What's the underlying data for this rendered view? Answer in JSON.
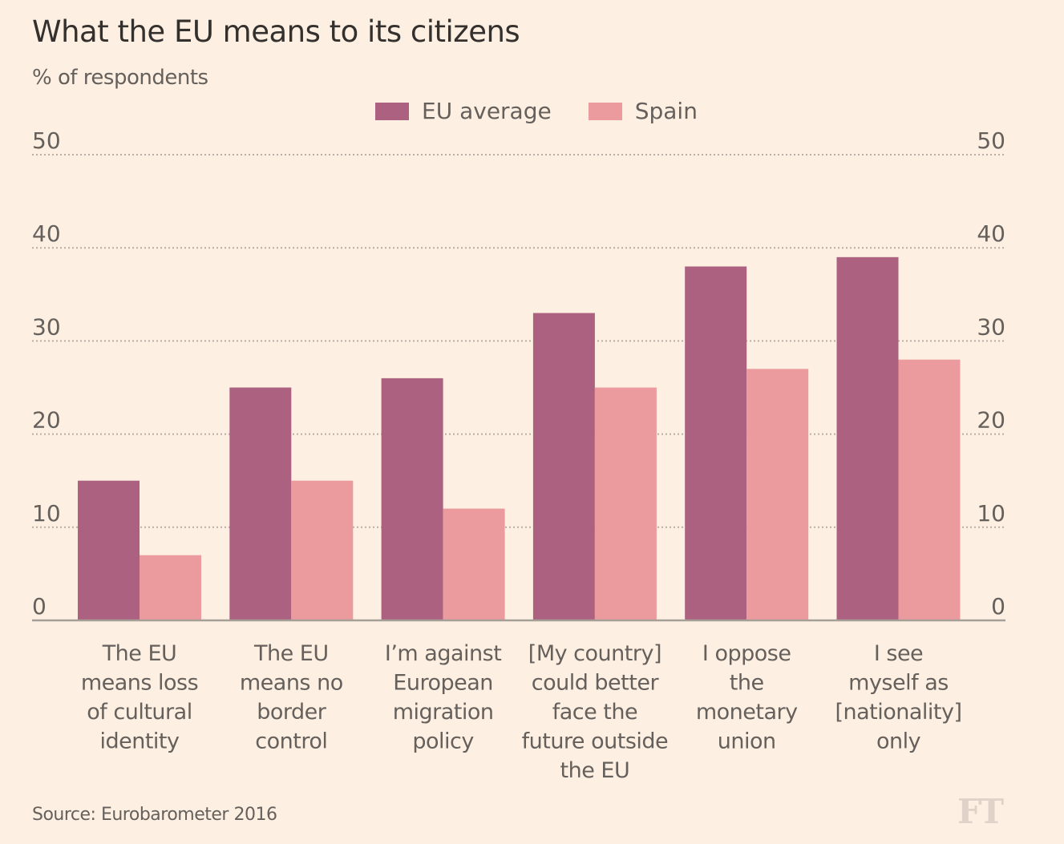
{
  "chart_data": {
    "type": "bar",
    "title": "What the EU means to its citizens",
    "subtitle": "% of respondents",
    "xlabel": "",
    "ylabel": "% of respondents",
    "ylim": [
      0,
      50
    ],
    "yticks": [
      0,
      10,
      20,
      30,
      40,
      50
    ],
    "ytick_labels": [
      "0",
      "10",
      "20",
      "30",
      "40",
      "50"
    ],
    "grid": true,
    "axes": "both-sides",
    "legend_position": "top-center",
    "categories": [
      [
        "The EU",
        "means loss",
        "of cultural",
        "identity"
      ],
      [
        "The EU",
        "means no",
        "border",
        "control"
      ],
      [
        "I’m against",
        "European",
        "migration",
        "policy"
      ],
      [
        "[My country]",
        "could better",
        "face the",
        "future outside",
        "the EU"
      ],
      [
        "I oppose",
        "the",
        "monetary",
        "union"
      ],
      [
        "I see",
        "myself as",
        "[nationality]",
        "only"
      ]
    ],
    "series": [
      {
        "name": "EU average",
        "color": "#ad6180",
        "values": [
          15,
          25,
          26,
          33,
          38,
          39
        ]
      },
      {
        "name": "Spain",
        "color": "#eb9b9d",
        "values": [
          7,
          15,
          12,
          25,
          27,
          28
        ]
      }
    ],
    "source": "Source: Eurobarometer 2016"
  },
  "header": {
    "title": "What the EU means to its citizens",
    "subtitle": "% of respondents"
  },
  "legend": [
    {
      "label": "EU average",
      "color": "#ad6180"
    },
    {
      "label": "Spain",
      "color": "#eb9b9d"
    }
  ],
  "footer": {
    "source": "Source: Eurobarometer 2016",
    "logo": "FT"
  }
}
